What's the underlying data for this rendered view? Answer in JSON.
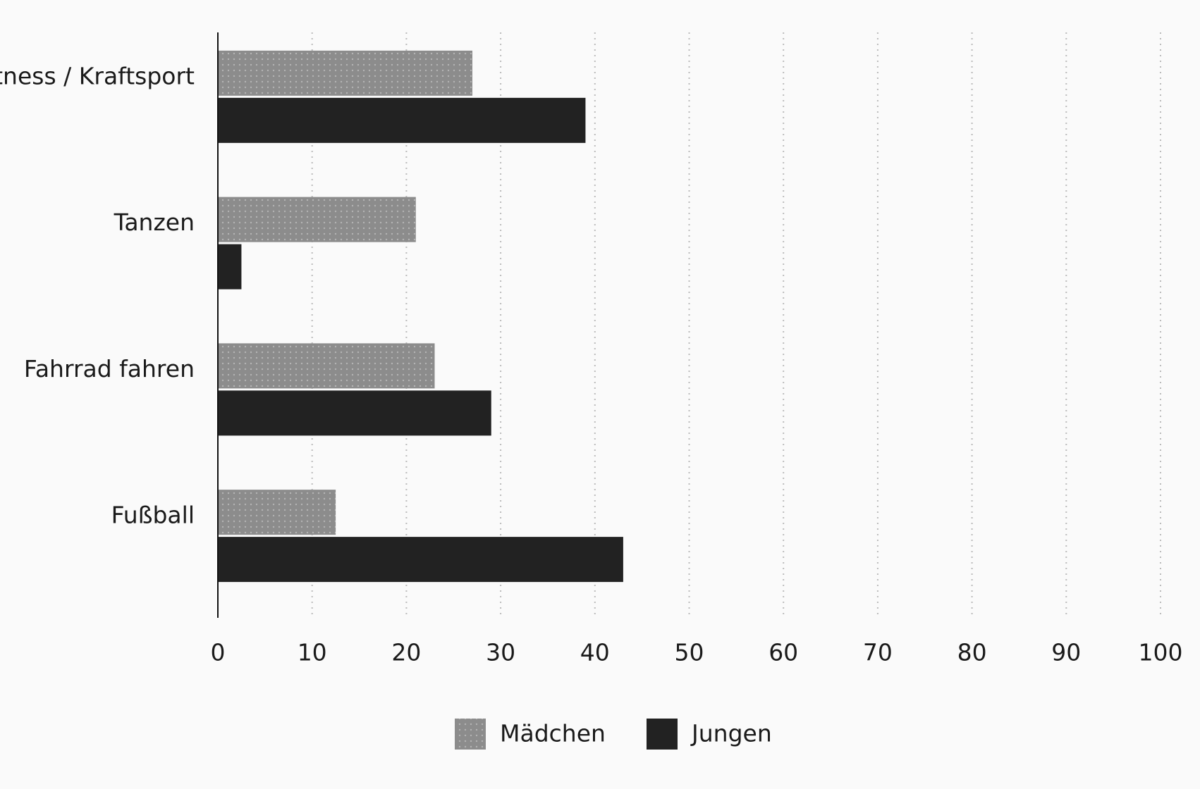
{
  "chart_data": {
    "type": "hbar",
    "categories": [
      "Fitness / Kraftsport",
      "Tanzen",
      "Fahrrad fahren",
      "Fußball"
    ],
    "series": [
      {
        "name": "Mädchen",
        "color": "#8c8c8c",
        "values": [
          27,
          21,
          23,
          12.5
        ]
      },
      {
        "name": "Jungen",
        "color": "#222222",
        "values": [
          39,
          2.5,
          29,
          43
        ]
      }
    ],
    "xlim": [
      0,
      100
    ],
    "xticks": [
      0,
      10,
      20,
      30,
      40,
      50,
      60,
      70,
      80,
      90,
      100
    ],
    "grid": true
  }
}
